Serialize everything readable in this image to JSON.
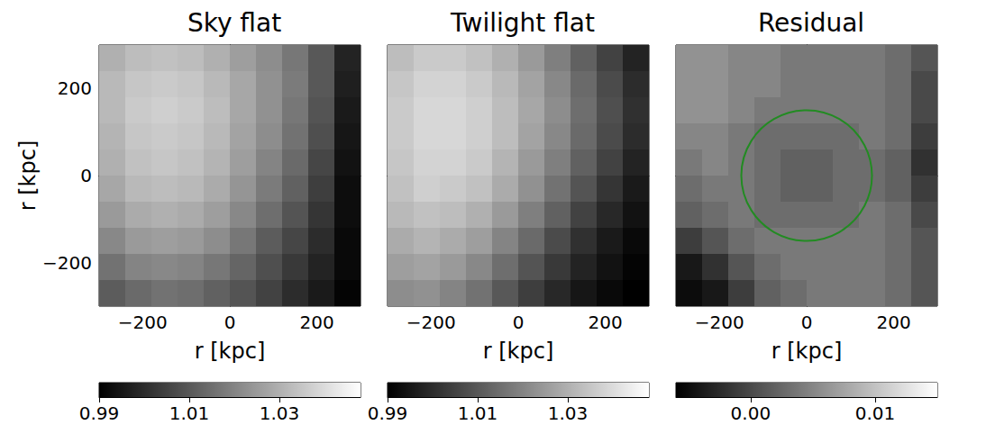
{
  "chart_data": [
    {
      "type": "heatmap",
      "title": "Sky flat",
      "xlabel": "r [kpc]",
      "ylabel": "r [kpc]",
      "grid": false,
      "xlim": [
        -300,
        300
      ],
      "ylim": [
        -300,
        300
      ],
      "xticks": [
        {
          "value": -200,
          "label": "−200"
        },
        0,
        200
      ],
      "yticks": [
        {
          "value": -200,
          "label": "−200"
        },
        0,
        200
      ],
      "x": [
        -270,
        -210,
        -150,
        -90,
        -30,
        30,
        90,
        150,
        210,
        270
      ],
      "y": [
        270,
        210,
        150,
        90,
        30,
        -30,
        -90,
        -150,
        -210,
        -270
      ],
      "cells": [
        [
          1.03,
          1.033,
          1.034,
          1.033,
          1.03,
          1.026,
          1.022,
          1.017,
          1.01,
          0.998
        ],
        [
          1.032,
          1.035,
          1.036,
          1.035,
          1.032,
          1.028,
          1.023,
          1.018,
          1.01,
          0.997
        ],
        [
          1.032,
          1.036,
          1.037,
          1.036,
          1.033,
          1.028,
          1.023,
          1.017,
          1.009,
          0.996
        ],
        [
          1.031,
          1.035,
          1.036,
          1.035,
          1.032,
          1.027,
          1.022,
          1.016,
          1.008,
          0.995
        ],
        [
          1.03,
          1.034,
          1.035,
          1.034,
          1.031,
          1.026,
          1.02,
          1.014,
          1.006,
          0.994
        ],
        [
          1.028,
          1.032,
          1.033,
          1.032,
          1.029,
          1.024,
          1.018,
          1.012,
          1.004,
          0.993
        ],
        [
          1.025,
          1.029,
          1.03,
          1.029,
          1.026,
          1.021,
          1.015,
          1.009,
          1.002,
          0.993
        ],
        [
          1.021,
          1.025,
          1.026,
          1.025,
          1.022,
          1.017,
          1.011,
          1.006,
          1.0,
          0.992
        ],
        [
          1.016,
          1.02,
          1.021,
          1.02,
          1.017,
          1.013,
          1.008,
          1.003,
          0.998,
          0.992
        ],
        [
          1.011,
          1.014,
          1.016,
          1.015,
          1.012,
          1.009,
          1.005,
          1.0,
          0.996,
          0.991
        ]
      ],
      "colorbar": {
        "range": [
          0.99,
          1.048
        ],
        "ticks": [
          0.99,
          1.01,
          1.03
        ]
      }
    },
    {
      "type": "heatmap",
      "title": "Twilight flat",
      "xlabel": "r [kpc]",
      "grid": false,
      "tick_labels": "x",
      "xlim": [
        -300,
        300
      ],
      "ylim": [
        -300,
        300
      ],
      "xticks": [
        {
          "value": -200,
          "label": "−200"
        },
        0,
        200
      ],
      "yticks": [
        {
          "value": -200,
          "label": "−200"
        },
        0,
        200
      ],
      "x": [
        -270,
        -210,
        -150,
        -90,
        -30,
        30,
        90,
        150,
        210,
        270
      ],
      "y": [
        270,
        210,
        150,
        90,
        30,
        -30,
        -90,
        -150,
        -210,
        -270
      ],
      "cells": [
        [
          1.033,
          1.036,
          1.036,
          1.034,
          1.03,
          1.025,
          1.019,
          1.012,
          1.005,
          0.998
        ],
        [
          1.035,
          1.038,
          1.038,
          1.036,
          1.032,
          1.027,
          1.021,
          1.014,
          1.007,
          1.0
        ],
        [
          1.036,
          1.039,
          1.039,
          1.037,
          1.033,
          1.028,
          1.022,
          1.015,
          1.008,
          1.001
        ],
        [
          1.036,
          1.039,
          1.039,
          1.037,
          1.033,
          1.027,
          1.021,
          1.014,
          1.007,
          1.0
        ],
        [
          1.035,
          1.038,
          1.038,
          1.036,
          1.031,
          1.025,
          1.019,
          1.012,
          1.005,
          0.998
        ],
        [
          1.034,
          1.037,
          1.036,
          1.034,
          1.029,
          1.023,
          1.016,
          1.009,
          1.002,
          0.996
        ],
        [
          1.032,
          1.034,
          1.033,
          1.03,
          1.025,
          1.019,
          1.012,
          1.005,
          0.999,
          0.994
        ],
        [
          1.029,
          1.031,
          1.029,
          1.026,
          1.02,
          1.014,
          1.007,
          1.001,
          0.996,
          0.992
        ],
        [
          1.026,
          1.027,
          1.025,
          1.021,
          1.015,
          1.009,
          1.003,
          0.998,
          0.994,
          0.991
        ],
        [
          1.022,
          1.023,
          1.02,
          1.016,
          1.01,
          1.004,
          0.999,
          0.995,
          0.992,
          0.99
        ]
      ],
      "colorbar": {
        "range": [
          0.99,
          1.048
        ],
        "ticks": [
          0.99,
          1.01,
          1.03
        ]
      }
    },
    {
      "type": "heatmap",
      "title": "Residual",
      "xlabel": "r [kpc]",
      "grid": false,
      "tick_labels": "x",
      "xlim": [
        -300,
        300
      ],
      "ylim": [
        -300,
        300
      ],
      "xticks": [
        {
          "value": -200,
          "label": "−200"
        },
        0,
        200
      ],
      "yticks": [
        {
          "value": -200,
          "label": "−200"
        },
        0,
        200
      ],
      "x": [
        -270,
        -210,
        -150,
        -90,
        -30,
        30,
        90,
        150,
        210,
        270
      ],
      "y": [
        270,
        210,
        150,
        90,
        30,
        -30,
        -90,
        -150,
        -210,
        -270
      ],
      "cells": [
        [
          0.006,
          0.006,
          0.005,
          0.005,
          0.004,
          0.004,
          0.004,
          0.004,
          0.003,
          0.001
        ],
        [
          0.006,
          0.006,
          0.005,
          0.005,
          0.004,
          0.004,
          0.004,
          0.004,
          0.003,
          0.0
        ],
        [
          0.006,
          0.006,
          0.005,
          0.004,
          0.004,
          0.004,
          0.004,
          0.004,
          0.003,
          0.0
        ],
        [
          0.005,
          0.005,
          0.004,
          0.003,
          0.003,
          0.003,
          0.003,
          0.004,
          0.003,
          -0.001
        ],
        [
          0.004,
          0.005,
          0.004,
          0.003,
          0.002,
          0.002,
          0.003,
          0.003,
          0.002,
          -0.002
        ],
        [
          0.003,
          0.004,
          0.004,
          0.003,
          0.002,
          0.002,
          0.003,
          0.003,
          0.002,
          -0.001
        ],
        [
          0.002,
          0.003,
          0.004,
          0.003,
          0.003,
          0.003,
          0.003,
          0.004,
          0.003,
          0.0
        ],
        [
          -0.001,
          0.001,
          0.003,
          0.004,
          0.004,
          0.004,
          0.004,
          0.004,
          0.003,
          0.001
        ],
        [
          -0.004,
          -0.002,
          0.001,
          0.003,
          0.004,
          0.004,
          0.004,
          0.004,
          0.003,
          0.001
        ],
        [
          -0.005,
          -0.004,
          -0.001,
          0.002,
          0.003,
          0.004,
          0.004,
          0.004,
          0.003,
          0.001
        ]
      ],
      "colorbar": {
        "range": [
          -0.006,
          0.015
        ],
        "ticks": [
          {
            "value": 0,
            "label": "0.00"
          },
          0.01
        ]
      },
      "circle": {
        "center": [
          0,
          0
        ],
        "radius": 150,
        "color": "#228b22"
      }
    }
  ]
}
